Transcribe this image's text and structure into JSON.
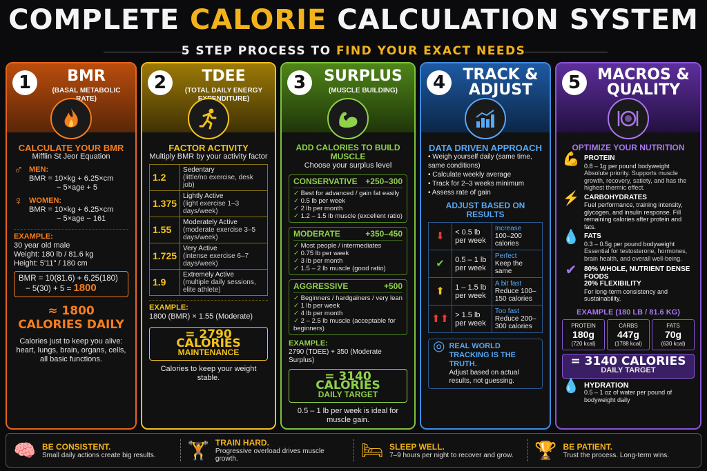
{
  "header": {
    "title_pre": "COMPLETE ",
    "title_hl": "CALORIE",
    "title_post": " CALCULATION SYSTEM",
    "subtitle_pre": "5 STEP PROCESS TO ",
    "subtitle_hl": "FIND YOUR EXACT NEEDS"
  },
  "col1": {
    "num": "1",
    "title": "BMR",
    "sub": "(BASAL METABOLIC RATE)",
    "icon": "flame-icon",
    "sec": "CALCULATE YOUR BMR",
    "eq_name": "Mifflin St Jeor Equation",
    "men_label": "MEN:",
    "men_eq1": "BMR = 10×kg + 6.25×cm",
    "men_eq2": "− 5×age + 5",
    "women_label": "WOMEN:",
    "women_eq1": "BMR = 10×kg + 6.25×cm",
    "women_eq2": "− 5×age − 161",
    "ex_label": "EXAMPLE:",
    "ex1": "30 year old male",
    "ex2": "Weight: 180 lb / 81.6 kg",
    "ex3": "Height: 5'11\" / 180 cm",
    "calc1": "BMR = 10(81.6) + 6.25(180)",
    "calc2": "− 5(30) + 5 = ",
    "calc_result": "1800",
    "result": "≈ 1800 CALORIES DAILY",
    "note": "Calories just to keep you alive: heart, lungs, brain, organs, cells, all basic functions."
  },
  "col2": {
    "num": "2",
    "title": "TDEE",
    "sub": "(TOTAL DAILY ENERGY EXPENDITURE)",
    "icon": "running-icon",
    "sec": "FACTOR ACTIVITY",
    "desc": "Multiply BMR by your activity factor",
    "rows": [
      {
        "f": "1.2",
        "t": "Sedentary",
        "d": "(little/no exercise, desk job)"
      },
      {
        "f": "1.375",
        "t": "Lightly Active",
        "d": "(light exercise 1–3 days/week)"
      },
      {
        "f": "1.55",
        "t": "Moderately Active",
        "d": "(moderate exercise 3–5 days/week)"
      },
      {
        "f": "1.725",
        "t": "Very Active",
        "d": "(intense exercise 6–7 days/week)"
      },
      {
        "f": "1.9",
        "t": "Extremely Active",
        "d": "(multiple daily sessions, elite athlete)"
      }
    ],
    "ex_label": "EXAMPLE:",
    "ex": "1800 (BMR) × 1.55 (Moderate)",
    "result": "= 2790 CALORIES",
    "result_sub": "MAINTENANCE",
    "note": "Calories to keep your weight stable."
  },
  "col3": {
    "num": "3",
    "title": "SURPLUS",
    "sub": "(MUSCLE BUILDING)",
    "icon": "flexed-arm-icon",
    "sec": "ADD CALORIES TO BUILD MUSCLE",
    "desc": "Choose your surplus level",
    "tiers": [
      {
        "name": "CONSERVATIVE",
        "val": "+250–300",
        "items": [
          "Best for advanced / gain fat easily",
          "0.5 lb per week",
          "2 lb per month",
          "1.2 – 1.5 lb muscle (excellent ratio)"
        ]
      },
      {
        "name": "MODERATE",
        "val": "+350–450",
        "items": [
          "Most people / intermediates",
          "0.75 lb per week",
          "3 lb per month",
          "1.5 – 2 lb muscle (good ratio)"
        ]
      },
      {
        "name": "AGGRESSIVE",
        "val": "+500",
        "items": [
          "Beginners / hardgainers / very lean",
          "1 lb per week",
          "4 lb per month",
          "2 – 2.5 lb muscle (acceptable for beginners)"
        ]
      }
    ],
    "ex_label": "EXAMPLE:",
    "ex": "2790 (TDEE) + 350 (Moderate Surplus)",
    "result": "= 3140 CALORIES",
    "result_sub": "DAILY TARGET",
    "note": "0.5 – 1 lb per week is ideal for muscle gain."
  },
  "col4": {
    "num": "4",
    "title": "TRACK & ADJUST",
    "icon": "bar-chart-icon",
    "sec": "DATA DRIVEN APPROACH",
    "bullets": [
      "Weigh yourself daily (same time, same conditions)",
      "Calculate weekly average",
      "Track for 2–3 weeks minimum",
      "Assess rate of gain"
    ],
    "adj_title": "ADJUST BASED ON RESULTS",
    "adj": [
      {
        "icon": "⬇",
        "color": "#e53935",
        "rate": "< 0.5 lb per week",
        "lbl": "Increase",
        "act": "100–200 calories"
      },
      {
        "icon": "✔",
        "color": "#6ccf3a",
        "rate": "0.5 – 1 lb per week",
        "lbl": "Perfect",
        "act": "Keep the same"
      },
      {
        "icon": "⬆",
        "color": "#f2c21d",
        "rate": "1 – 1.5 lb per week",
        "lbl": "A bit fast",
        "act": "Reduce 100–150 calories"
      },
      {
        "icon": "⬆⬆",
        "color": "#e53935",
        "rate": "> 1.5 lb per week",
        "lbl": "Too fast",
        "act": "Reduce 200–300 calories"
      }
    ],
    "tip_title": "REAL WORLD TRACKING IS THE TRUTH.",
    "tip": "Adjust based on actual results, not guessing."
  },
  "col5": {
    "num": "5",
    "title": "MACROS & QUALITY",
    "icon": "plate-icon",
    "sec": "OPTIMIZE YOUR NUTRITION",
    "macros": [
      {
        "icon": "💪",
        "t": "PROTEIN",
        "d": "0.8 – 1g per pound bodyweight",
        "n": "Absolute priority. Supports muscle growth, recovery, satiety, and has the highest thermic effect."
      },
      {
        "icon": "⚡",
        "t": "CARBOHYDRATES",
        "d": "Fuel performance, training intensity, glycogen, and insulin response. Fill remaining calories after protein and fats.",
        "n": ""
      },
      {
        "icon": "💧",
        "t": "FATS",
        "d": "0.3 – 0.5g per pound bodyweight",
        "n": "Essential for testosterone, hormones, brain health, and overall well-being."
      }
    ],
    "quality_t1": "80% WHOLE, NUTRIENT DENSE FOODS",
    "quality_t2": "20% FLEXIBILITY",
    "quality_d": "For long-term consistency and sustainability.",
    "ex_title": "EXAMPLE (180 LB / 81.6 KG)",
    "grid": [
      {
        "l": "PROTEIN",
        "v": "180g",
        "k": "(720 kcal)"
      },
      {
        "l": "CARBS",
        "v": "447g",
        "k": "(1788 kcal)"
      },
      {
        "l": "FATS",
        "v": "70g",
        "k": "(630 kcal)"
      }
    ],
    "result": "= 3140 CALORIES",
    "result_sub": "DAILY TARGET",
    "hyd_t": "HYDRATION",
    "hyd_d": "0.5 – 1 oz of water per pound of bodyweight daily"
  },
  "footer": [
    {
      "icon": "brain-icon",
      "glyph": "🧠",
      "t": "BE CONSISTENT.",
      "d": "Small daily actions create big results."
    },
    {
      "icon": "dumbbell-icon",
      "glyph": "🏋",
      "t": "TRAIN HARD.",
      "d": "Progressive overload drives muscle growth."
    },
    {
      "icon": "bed-icon",
      "glyph": "🛏",
      "t": "SLEEP WELL.",
      "d": "7–9 hours per night to recover and grow."
    },
    {
      "icon": "trophy-icon",
      "glyph": "🏆",
      "t": "BE PATIENT.",
      "d": "Trust the process. Long-term wins."
    }
  ]
}
